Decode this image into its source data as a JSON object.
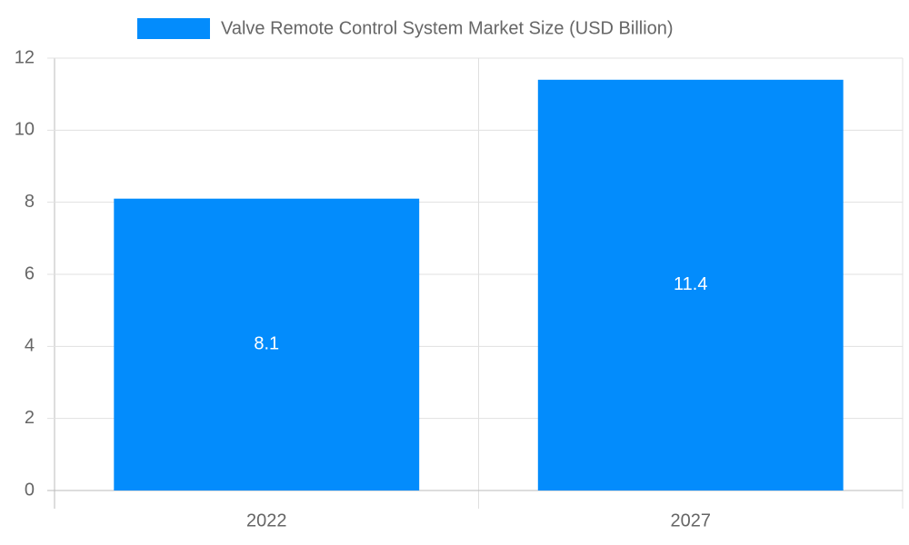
{
  "chart_data": {
    "type": "bar",
    "categories": [
      "2022",
      "2027"
    ],
    "series": [
      {
        "name": "Valve Remote Control System Market Size (USD Billion)",
        "color": "#038cfc",
        "values": [
          8.1,
          11.4
        ]
      }
    ],
    "ylim": [
      0,
      12
    ],
    "yticks": [
      0,
      2,
      4,
      6,
      8,
      10,
      12
    ],
    "grid": true,
    "legend": "top"
  }
}
